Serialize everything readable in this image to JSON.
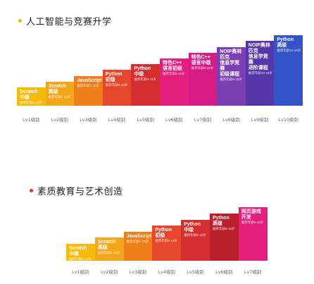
{
  "sections": [
    {
      "title": "人工智能与竞赛升学",
      "dot_color": "#f5b800",
      "bars": [
        {
          "name": "Scratch\n中级",
          "age": "推荐年龄6-12岁",
          "color": "#f6b90e",
          "level": "Lv1级别"
        },
        {
          "name": "Scratch\n高级",
          "age": "推荐年龄6-12岁",
          "color": "#f3a61a",
          "level": "Lv2级别"
        },
        {
          "name": "JavaScript",
          "age": "推荐年龄7-13岁",
          "color": "#ef7f1a",
          "level": "Lv3级别"
        },
        {
          "name": "Python\n初级",
          "age": "推荐年龄8-16岁",
          "color": "#e4472b",
          "level": "Lv4级别"
        },
        {
          "name": "Python\n中级",
          "age": "推荐年龄8-16岁",
          "color": "#d42e31",
          "level": "Lv5级别"
        },
        {
          "name": "特色C++\n语言初级",
          "age": "推荐年龄9-16岁",
          "color": "#e41e7c",
          "level": "Lv6级别"
        },
        {
          "name": "特色C++\n语言中级",
          "age": "推荐年龄9-18岁",
          "color": "#d61b86",
          "level": "Lv7级别"
        },
        {
          "name": "NOIP奥林匹克\n信息学竞赛\n初级课程",
          "age": "推荐年龄9-18岁",
          "color": "#7b3fb3",
          "level": "Lv8级别"
        },
        {
          "name": "NOIP奥林匹克\n信息学竞赛\n进阶课程",
          "age": "推荐年龄10-18岁",
          "color": "#5536a8",
          "level": "Lv9级别"
        },
        {
          "name": "Python\n高级",
          "age": "推荐年龄10-18岁",
          "color": "#3553c8",
          "level": "Lv10级别"
        }
      ]
    },
    {
      "title": "素质教育与艺术创造",
      "dot_color": "#e8303a",
      "bars": [
        {
          "name": "Scratch\n中级",
          "age": "推荐年龄6-12岁",
          "color": "#f6b90e",
          "level": "Lv1级别"
        },
        {
          "name": "Scratch\n高级",
          "age": "推荐年龄6-12岁",
          "color": "#f3a61a",
          "level": "Lv2级别"
        },
        {
          "name": "JavaScript",
          "age": "推荐年龄7-13岁",
          "color": "#ef7f1a",
          "level": "Lv3级别"
        },
        {
          "name": "Python\n初级",
          "age": "推荐年龄8-16岁",
          "color": "#e4472b",
          "level": "Lv4级别"
        },
        {
          "name": "Python\n中级",
          "age": "推荐年龄8-16岁",
          "color": "#d42e31",
          "level": "Lv5级别"
        },
        {
          "name": "Python\n高级",
          "age": "推荐年龄8-16岁",
          "color": "#b9202c",
          "level": "Lv6级别"
        },
        {
          "name": "网页游戏\n开发",
          "age": "推荐年龄9-18岁",
          "color": "#e41e7c",
          "level": "Lv7级别"
        }
      ]
    }
  ]
}
